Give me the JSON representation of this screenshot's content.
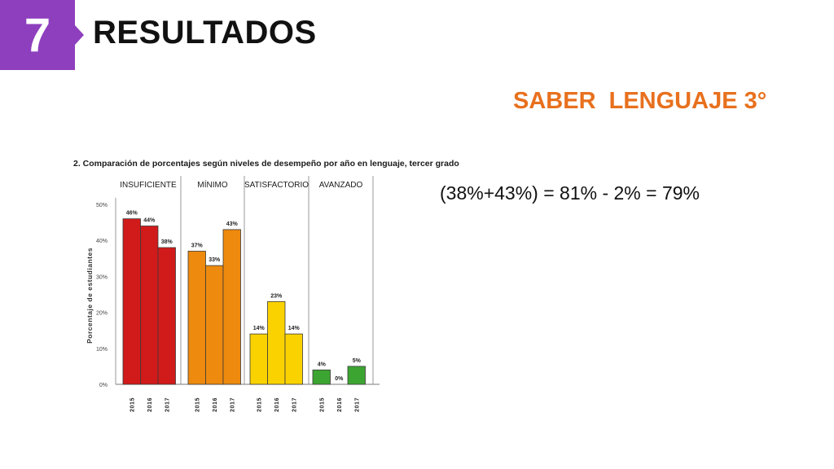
{
  "slide": {
    "number": "7",
    "title": "RESULTADOS",
    "subtitle": "SABER  LENGUAJE 3°",
    "formula": "(38%+43%) = 81% - 2% = 79%",
    "colors": {
      "number_box": "#8e3fbe",
      "subtitle": "#e8701e",
      "text": "#111111"
    }
  },
  "chart_data": {
    "type": "bar",
    "title": "2. Comparación de porcentajes según niveles de desempeño por año en lenguaje, tercer grado",
    "ylabel": "Porcentaje de estudiantes",
    "xlabel": "",
    "ylim": [
      0,
      50
    ],
    "yticks": [
      "0%",
      "10%",
      "20%",
      "30%",
      "40%",
      "50%"
    ],
    "grid": false,
    "groups": [
      {
        "name": "INSUFICIENTE",
        "color": "#d11a1a",
        "bars": [
          {
            "year": "2015",
            "value": 46,
            "label": "46%"
          },
          {
            "year": "2016",
            "value": 44,
            "label": "44%"
          },
          {
            "year": "2017",
            "value": 38,
            "label": "38%"
          }
        ]
      },
      {
        "name": "MÍNIMO",
        "color": "#ee8a0e",
        "bars": [
          {
            "year": "2015",
            "value": 37,
            "label": "37%"
          },
          {
            "year": "2016",
            "value": 33,
            "label": "33%"
          },
          {
            "year": "2017",
            "value": 43,
            "label": "43%"
          }
        ]
      },
      {
        "name": "SATISFACTORIO",
        "color": "#fad200",
        "bars": [
          {
            "year": "2015",
            "value": 14,
            "label": "14%"
          },
          {
            "year": "2016",
            "value": 23,
            "label": "23%"
          },
          {
            "year": "2017",
            "value": 14,
            "label": "14%"
          }
        ]
      },
      {
        "name": "AVANZADO",
        "color": "#3ca531",
        "bars": [
          {
            "year": "2015",
            "value": 4,
            "label": "4%"
          },
          {
            "year": "2016",
            "value": 0,
            "label": "0%"
          },
          {
            "year": "2017",
            "value": 5,
            "label": "5%"
          }
        ]
      }
    ]
  }
}
